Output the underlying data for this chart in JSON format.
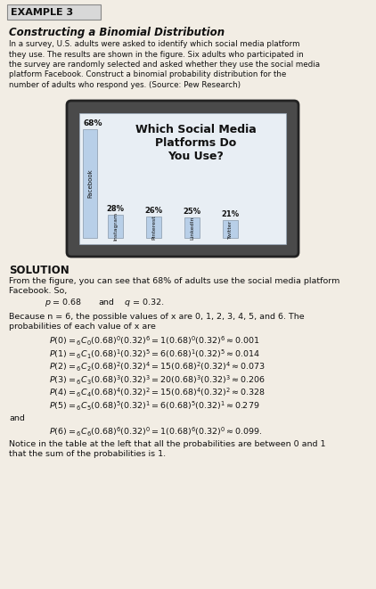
{
  "title_box_text": "EXAMPLE 3",
  "title_box_bg": "#d8d8d8",
  "section_title": "Constructing a Binomial Distribution",
  "intro_lines": [
    "In a survey, U.S. adults were asked to identify which social media platform",
    "they use. The results are shown in the figure. Six adults who participated in",
    "the survey are randomly selected and asked whether they use the social media",
    "platform Facebook. Construct a binomial probability distribution for the",
    "number of adults who respond yes. (Source: Pew Research)"
  ],
  "chart_title": "Which Social Media\nPlatforms Do\nYou Use?",
  "bar_labels": [
    "Facebook",
    "Instagram",
    "Pinterest",
    "LinkedIn",
    "Twitter"
  ],
  "bar_values": [
    68,
    28,
    26,
    25,
    21
  ],
  "bar_color": "#b8cfe8",
  "bar_color_fb": "#b8cfe8",
  "device_bg": "#4a4a4a",
  "screen_bg": "#e8eef4",
  "solution_header": "SOLUTION",
  "sol_line1": "From the figure, you can see that 68% of adults use the social media platform",
  "sol_line2": "Facebook. So,",
  "pq_line_p": "p",
  "pq_line_eq1": " = 0.68",
  "pq_line_and": "    and    ",
  "pq_line_q": "q",
  "pq_line_eq2": " = 0.32.",
  "because_line1": "Because n = 6, the possible values of x are 0, 1, 2, 3, 4, 5, and 6. The",
  "because_line2": "probabilities of each value of x are",
  "and_text": "and",
  "notice_line1": "Notice in the table at the left that all the probabilities are between 0 and 1",
  "notice_line2": "that the sum of the probabilities is 1.",
  "bg_color": "#f2ede4",
  "text_color": "#111111",
  "eq_indent": 55,
  "eq_fontsize": 6.8
}
